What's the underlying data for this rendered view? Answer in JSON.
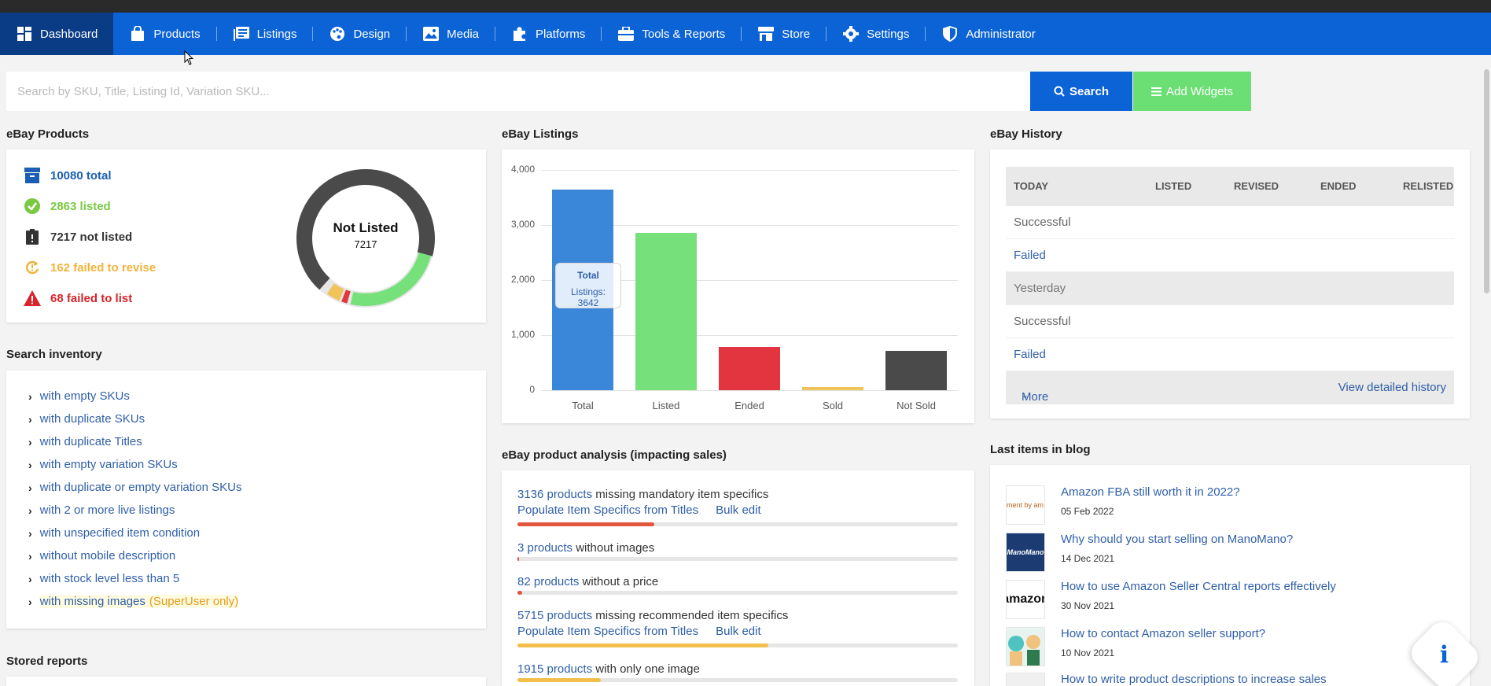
{
  "nav": {
    "items": [
      {
        "label": "Dashboard",
        "icon": "grid-icon"
      },
      {
        "label": "Products",
        "icon": "bag-icon"
      },
      {
        "label": "Listings",
        "icon": "listings-icon"
      },
      {
        "label": "Design",
        "icon": "palette-icon"
      },
      {
        "label": "Media",
        "icon": "image-icon"
      },
      {
        "label": "Platforms",
        "icon": "puzzle-icon"
      },
      {
        "label": "Tools & Reports",
        "icon": "toolbox-icon"
      },
      {
        "label": "Store",
        "icon": "store-icon"
      },
      {
        "label": "Settings",
        "icon": "gear-icon"
      },
      {
        "label": "Administrator",
        "icon": "shield-icon"
      }
    ]
  },
  "search": {
    "placeholder": "Search by SKU, Title, Listing Id, Variation SKU...",
    "search_label": "Search",
    "widgets_label": "Add Widgets"
  },
  "products": {
    "title": "eBay Products",
    "stats": [
      {
        "text": "10080 total",
        "color": "#1a5fb4",
        "icon": "box-icon"
      },
      {
        "text": "2863 listed",
        "color": "#7ac943",
        "icon": "check-badge-icon"
      },
      {
        "text": "7217 not listed",
        "color": "#333333",
        "icon": "clipboard-icon"
      },
      {
        "text": "162 failed to revise",
        "color": "#f0b43c",
        "icon": "refresh-icon"
      },
      {
        "text": "68 failed to list",
        "color": "#d8242d",
        "icon": "warning-icon"
      }
    ],
    "donut_label": "Not Listed",
    "donut_value": "7217"
  },
  "inventory": {
    "title": "Search inventory",
    "items": [
      "with empty SKUs",
      "with duplicate SKUs",
      "with duplicate Titles",
      "with empty variation SKUs",
      "with duplicate or empty variation SKUs",
      "with 2 or more live listings",
      "with unspecified item condition",
      "without mobile description",
      "with stock level less than 5",
      "with missing images"
    ],
    "superuser_note": "(SuperUser only)"
  },
  "stored_reports": {
    "title": "Stored reports"
  },
  "listings": {
    "title": "eBay Listings",
    "tooltip_title": "Total",
    "tooltip_value": "Listings: 3642"
  },
  "chart_data": {
    "type": "bar",
    "categories": [
      "Total",
      "Listed",
      "Ended",
      "Sold",
      "Not Sold"
    ],
    "values": [
      3642,
      2863,
      780,
      60,
      720
    ],
    "colors": [
      "#3a86d9",
      "#76e07a",
      "#e2353f",
      "#f0c45a",
      "#4a4a4a"
    ],
    "ylim": [
      0,
      4000
    ],
    "yticks": [
      "0",
      "1,000",
      "2,000",
      "3,000",
      "4,000"
    ],
    "grid": true
  },
  "analysis": {
    "title": "eBay product analysis (impacting sales)",
    "rows": [
      {
        "link": "3136 products",
        "text": " missing mandatory item specifics",
        "actions": [
          "Populate Item Specifics from Titles",
          "Bulk edit"
        ],
        "fraction": 0.31,
        "color": "#e0573e"
      },
      {
        "link": "3 products",
        "text": " without images",
        "actions": [],
        "fraction": 0.004,
        "color": "#e0573e"
      },
      {
        "link": "82 products",
        "text": " without a price",
        "actions": [],
        "fraction": 0.01,
        "color": "#e0573e"
      },
      {
        "link": "5715 products",
        "text": " missing recommended item specifics",
        "actions": [
          "Populate Item Specifics from Titles",
          "Bulk edit"
        ],
        "fraction": 0.57,
        "color": "#f2bf4b"
      },
      {
        "link": "1915 products",
        "text": " with only one image",
        "actions": [],
        "fraction": 0.19,
        "color": "#f2bf4b"
      }
    ]
  },
  "history": {
    "title": "eBay History",
    "headers": [
      "TODAY",
      "LISTED",
      "REVISED",
      "ENDED",
      "RELISTED"
    ],
    "rows": [
      {
        "label": "Successful",
        "type": "normal"
      },
      {
        "label": "Failed",
        "type": "link"
      },
      {
        "label": "Yesterday",
        "type": "group"
      },
      {
        "label": "Successful",
        "type": "normal"
      },
      {
        "label": "Failed",
        "type": "link"
      }
    ],
    "more_label": "More",
    "detail_label": "View detailed history"
  },
  "blog": {
    "title": "Last items in blog",
    "items": [
      {
        "title": "Amazon FBA still worth it in 2022?",
        "date": "05 Feb 2022",
        "thumb": "ment by am"
      },
      {
        "title": "Why should you start selling on ManoMano?",
        "date": "14 Dec 2021",
        "thumb": "ManoMano"
      },
      {
        "title": "How to use Amazon Seller Central reports effectively",
        "date": "30 Nov 2021",
        "thumb": "amazon"
      },
      {
        "title": "How to contact Amazon seller support?",
        "date": "10 Nov 2021",
        "thumb": ""
      },
      {
        "title": "How to write product descriptions to increase sales",
        "date": "",
        "thumb": ""
      }
    ]
  },
  "info_button": {
    "label": "i"
  }
}
